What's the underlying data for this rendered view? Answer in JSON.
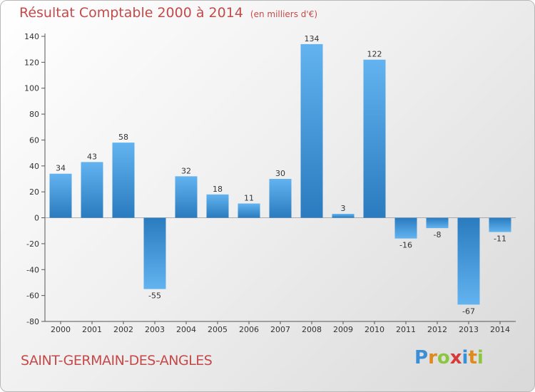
{
  "title": "Résultat Comptable 2000 à 2014",
  "unit": "(en milliers d'€)",
  "town": "SAINT-GERMAIN-DES-ANGLES",
  "logo": {
    "text": "Proxiti",
    "letters": [
      {
        "ch": "P",
        "color": "#3b8fd6"
      },
      {
        "ch": "r",
        "color": "#e08a1e"
      },
      {
        "ch": "o",
        "color": "#8cc63f"
      },
      {
        "ch": "x",
        "color": "#d63b3b"
      },
      {
        "ch": "i",
        "color": "#3b8fd6"
      },
      {
        "ch": "t",
        "color": "#e08a1e"
      },
      {
        "ch": "i",
        "color": "#8cc63f"
      }
    ]
  },
  "chart_data": {
    "type": "bar",
    "categories": [
      "2000",
      "2001",
      "2002",
      "2003",
      "2004",
      "2005",
      "2006",
      "2007",
      "2008",
      "2009",
      "2010",
      "2011",
      "2012",
      "2013",
      "2014"
    ],
    "values": [
      34,
      43,
      58,
      -55,
      32,
      18,
      11,
      30,
      134,
      3,
      122,
      -16,
      -8,
      -67,
      -11
    ],
    "ylim": [
      -80,
      140
    ],
    "yticks": [
      140,
      120,
      100,
      80,
      60,
      40,
      20,
      0,
      -20,
      -40,
      -60,
      -80
    ],
    "grid": false,
    "bar_color_top": "#62b3ef",
    "bar_color_bottom": "#2a7bbf"
  }
}
